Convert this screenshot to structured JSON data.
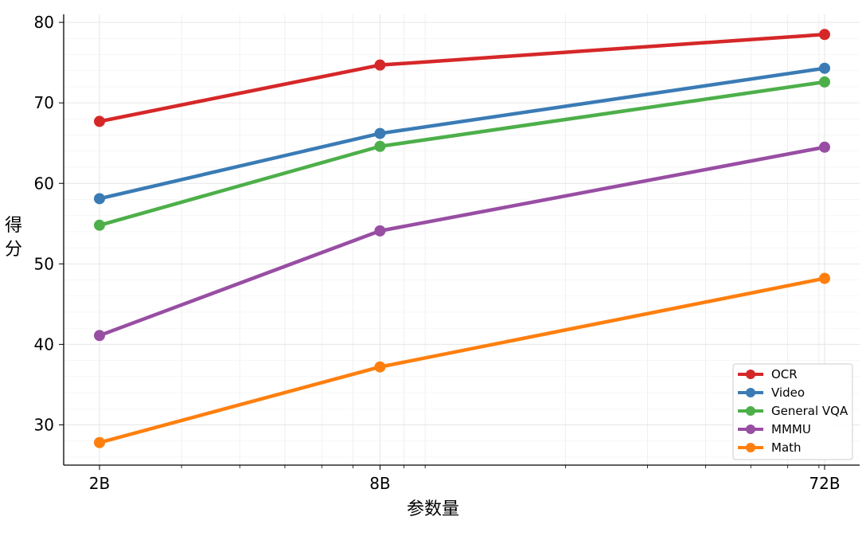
{
  "chart_data": {
    "type": "line",
    "categories": [
      "2B",
      "8B",
      "72B"
    ],
    "x_values": [
      2,
      8,
      72
    ],
    "x_scale": "log",
    "xlabel": "参数量",
    "ylabel": "得分",
    "ylim": [
      25,
      81
    ],
    "yticks": [
      30,
      40,
      50,
      60,
      70,
      80
    ],
    "grid": true,
    "legend_position": "lower-right",
    "series": [
      {
        "name": "OCR",
        "values": [
          67.7,
          74.7,
          78.5
        ],
        "color": "#d62728"
      },
      {
        "name": "Video",
        "values": [
          58.1,
          66.2,
          74.3
        ],
        "color": "#3a7bb5"
      },
      {
        "name": "General VQA",
        "values": [
          54.8,
          64.6,
          72.6
        ],
        "color": "#4daf4a"
      },
      {
        "name": "MMMU",
        "values": [
          41.1,
          54.1,
          64.5
        ],
        "color": "#984ea3"
      },
      {
        "name": "Math",
        "values": [
          27.8,
          37.2,
          48.2
        ],
        "color": "#ff7f0e"
      }
    ]
  }
}
